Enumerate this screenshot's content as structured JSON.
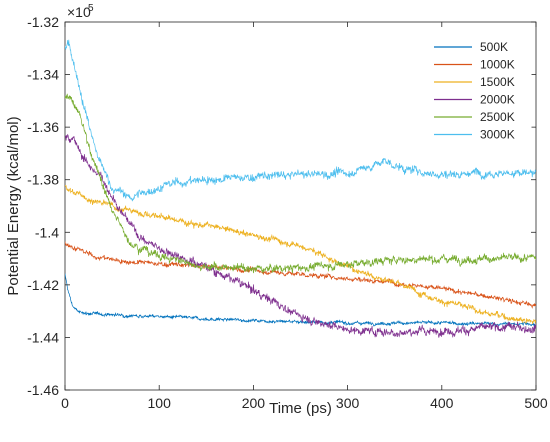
{
  "chart_data": {
    "type": "line",
    "xlabel": "Time (ps)",
    "ylabel": "Potential Energy (kcal/mol)",
    "y_multiplier_label": "×10",
    "y_multiplier_exponent": "5",
    "xlim": [
      0,
      500
    ],
    "ylim": [
      -1.46,
      -1.32
    ],
    "xticks": [
      0,
      100,
      200,
      300,
      400,
      500
    ],
    "xtick_labels": [
      "0",
      "100",
      "200",
      "300",
      "400",
      "500"
    ],
    "yticks": [
      -1.46,
      -1.44,
      -1.42,
      -1.4,
      -1.38,
      -1.36,
      -1.34,
      -1.32
    ],
    "ytick_labels": [
      "-1.46",
      "-1.44",
      "-1.42",
      "-1.4",
      "-1.38",
      "-1.36",
      "-1.34",
      "-1.32"
    ],
    "grid": false,
    "legend_position": "top-right",
    "series": [
      {
        "name": "500K",
        "color": "#0072BD",
        "noise": 0.0006,
        "points": [
          [
            0,
            -1.416
          ],
          [
            3,
            -1.422
          ],
          [
            8,
            -1.428
          ],
          [
            15,
            -1.4305
          ],
          [
            30,
            -1.431
          ],
          [
            60,
            -1.4315
          ],
          [
            100,
            -1.432
          ],
          [
            150,
            -1.433
          ],
          [
            200,
            -1.4335
          ],
          [
            250,
            -1.434
          ],
          [
            300,
            -1.4345
          ],
          [
            350,
            -1.4345
          ],
          [
            400,
            -1.4345
          ],
          [
            450,
            -1.4348
          ],
          [
            500,
            -1.435
          ]
        ]
      },
      {
        "name": "1000K",
        "color": "#D95319",
        "noise": 0.0009,
        "points": [
          [
            0,
            -1.404
          ],
          [
            10,
            -1.406
          ],
          [
            30,
            -1.409
          ],
          [
            60,
            -1.411
          ],
          [
            100,
            -1.412
          ],
          [
            150,
            -1.413
          ],
          [
            200,
            -1.4145
          ],
          [
            250,
            -1.416
          ],
          [
            300,
            -1.4175
          ],
          [
            350,
            -1.419
          ],
          [
            400,
            -1.4215
          ],
          [
            450,
            -1.4245
          ],
          [
            500,
            -1.428
          ]
        ]
      },
      {
        "name": "1500K",
        "color": "#EDB120",
        "noise": 0.0012,
        "points": [
          [
            0,
            -1.382
          ],
          [
            10,
            -1.385
          ],
          [
            30,
            -1.388
          ],
          [
            60,
            -1.391
          ],
          [
            100,
            -1.394
          ],
          [
            150,
            -1.3975
          ],
          [
            200,
            -1.401
          ],
          [
            250,
            -1.405
          ],
          [
            300,
            -1.413
          ],
          [
            350,
            -1.419
          ],
          [
            400,
            -1.426
          ],
          [
            450,
            -1.431
          ],
          [
            500,
            -1.434
          ]
        ]
      },
      {
        "name": "2000K",
        "color": "#7E2F8E",
        "noise": 0.0016,
        "points": [
          [
            0,
            -1.363
          ],
          [
            10,
            -1.365
          ],
          [
            20,
            -1.372
          ],
          [
            40,
            -1.38
          ],
          [
            60,
            -1.392
          ],
          [
            80,
            -1.402
          ],
          [
            100,
            -1.406
          ],
          [
            150,
            -1.413
          ],
          [
            200,
            -1.422
          ],
          [
            250,
            -1.432
          ],
          [
            300,
            -1.437
          ],
          [
            350,
            -1.438
          ],
          [
            400,
            -1.4375
          ],
          [
            450,
            -1.4365
          ],
          [
            500,
            -1.436
          ]
        ]
      },
      {
        "name": "2500K",
        "color": "#77AC30",
        "noise": 0.0015,
        "points": [
          [
            0,
            -1.348
          ],
          [
            5,
            -1.348
          ],
          [
            15,
            -1.355
          ],
          [
            30,
            -1.372
          ],
          [
            50,
            -1.392
          ],
          [
            70,
            -1.404
          ],
          [
            100,
            -1.409
          ],
          [
            150,
            -1.413
          ],
          [
            200,
            -1.414
          ],
          [
            250,
            -1.4135
          ],
          [
            300,
            -1.412
          ],
          [
            350,
            -1.4105
          ],
          [
            400,
            -1.41
          ],
          [
            450,
            -1.41
          ],
          [
            500,
            -1.41
          ]
        ]
      },
      {
        "name": "3000K",
        "color": "#4DBEEE",
        "noise": 0.0016,
        "points": [
          [
            0,
            -1.33
          ],
          [
            4,
            -1.328
          ],
          [
            10,
            -1.336
          ],
          [
            20,
            -1.352
          ],
          [
            35,
            -1.372
          ],
          [
            50,
            -1.383
          ],
          [
            70,
            -1.387
          ],
          [
            90,
            -1.384
          ],
          [
            120,
            -1.381
          ],
          [
            150,
            -1.38
          ],
          [
            200,
            -1.379
          ],
          [
            250,
            -1.378
          ],
          [
            300,
            -1.3775
          ],
          [
            340,
            -1.373
          ],
          [
            360,
            -1.376
          ],
          [
            400,
            -1.378
          ],
          [
            450,
            -1.377
          ],
          [
            500,
            -1.378
          ]
        ]
      }
    ]
  }
}
